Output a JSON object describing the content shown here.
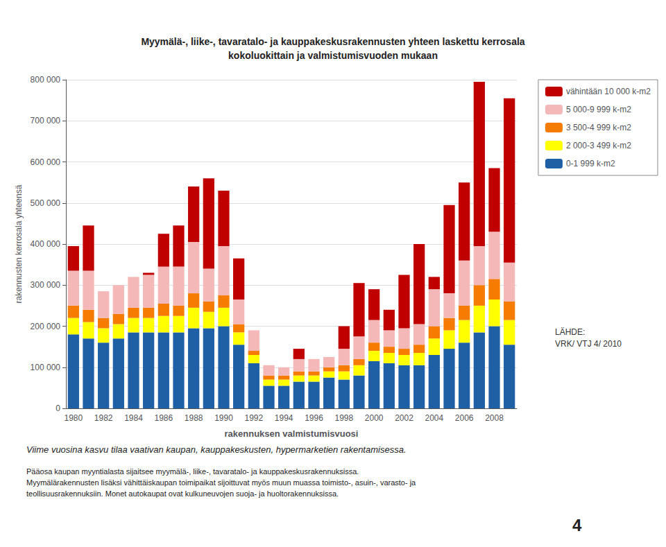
{
  "chart_data": {
    "type": "bar",
    "title": "Myymälä-, liike-, tavaratalo- ja kauppakeskusrakennusten yhteen laskettu kerrosala",
    "subtitle": "kokoluokittain ja valmistumisvuoden mukaan",
    "xlabel": "rakennuksen valmistumisvuosi",
    "ylabel": "rakennusten kerrosala yhteensä",
    "categories": [
      "1980",
      null,
      "1982",
      null,
      "1984",
      null,
      "1986",
      null,
      "1988",
      null,
      "1990",
      null,
      "1992",
      null,
      "1994",
      null,
      "1996",
      null,
      "1998",
      null,
      "2000",
      null,
      "2002",
      null,
      "2004",
      null,
      "2006",
      null,
      "2008",
      null
    ],
    "series": [
      {
        "name": "vähintään 10 000 k-m2",
        "color": "#c00000",
        "values": [
          60000,
          110000,
          0,
          0,
          0,
          5000,
          80000,
          100000,
          135000,
          220000,
          135000,
          100000,
          0,
          0,
          0,
          25000,
          0,
          0,
          55000,
          130000,
          75000,
          50000,
          130000,
          195000,
          30000,
          215000,
          190000,
          400000,
          155000,
          400000
        ]
      },
      {
        "name": "5 000-9 999 k-m2",
        "color": "#f4b8b8",
        "values": [
          85000,
          95000,
          65000,
          70000,
          75000,
          80000,
          90000,
          95000,
          125000,
          80000,
          120000,
          60000,
          50000,
          25000,
          20000,
          30000,
          30000,
          25000,
          40000,
          55000,
          55000,
          40000,
          50000,
          50000,
          90000,
          60000,
          110000,
          95000,
          115000,
          95000
        ]
      },
      {
        "name": "3 500-4 999 k-m2",
        "color": "#f57c00",
        "values": [
          30000,
          30000,
          25000,
          25000,
          25000,
          25000,
          30000,
          25000,
          35000,
          25000,
          30000,
          20000,
          10000,
          10000,
          10000,
          10000,
          10000,
          10000,
          15000,
          15000,
          20000,
          15000,
          15000,
          20000,
          30000,
          30000,
          35000,
          50000,
          50000,
          45000
        ]
      },
      {
        "name": "2 000-3 499 k-m2",
        "color": "#ffff00",
        "values": [
          40000,
          40000,
          35000,
          35000,
          35000,
          35000,
          40000,
          40000,
          50000,
          40000,
          45000,
          30000,
          20000,
          15000,
          15000,
          15000,
          15000,
          15000,
          20000,
          25000,
          25000,
          25000,
          25000,
          30000,
          40000,
          45000,
          55000,
          65000,
          65000,
          60000
        ]
      },
      {
        "name": "0-1 999 k-m2",
        "color": "#1f5fa6",
        "values": [
          180000,
          170000,
          160000,
          170000,
          185000,
          185000,
          185000,
          185000,
          195000,
          195000,
          200000,
          155000,
          110000,
          55000,
          55000,
          65000,
          65000,
          75000,
          70000,
          80000,
          115000,
          110000,
          105000,
          105000,
          130000,
          145000,
          160000,
          185000,
          200000,
          155000
        ]
      }
    ],
    "stacked": true,
    "ylim": [
      0,
      800000
    ],
    "yticks": [
      0,
      {
        "value": 100000,
        "label": "100 000"
      },
      {
        "value": 200000,
        "label": "200 000"
      },
      {
        "value": 300000,
        "label": "300 000"
      },
      {
        "value": 400000,
        "label": "400 000"
      },
      {
        "value": 500000,
        "label": "500 000"
      },
      {
        "value": 600000,
        "label": "600 000"
      },
      {
        "value": 700000,
        "label": "700 000"
      },
      {
        "value": 800000,
        "label": "800 000"
      }
    ],
    "grid": true,
    "legend": "right",
    "annotations": [
      "LÄHDE:\nVRK/ VTJ 4/ 2010",
      "Viime vuosina kasvu tilaa vaativan kaupan, kauppakeskusten, hypermarketien rakentamisessa.",
      "Pääosa kaupan myyntialasta sijaitsee myymälä-, liike-, tavaratalo- ja kauppakeskusrakennuksissa.\nMyymälärakennusten lisäksi vähittäiskaupan toimipaikat sijoittuvat myös muun muassa toimisto-, asuin-, varasto- ja\nteollisuusrakennuksiin. Monet autokaupat ovat kulkuneuvojen suoja- ja huoltorakennuksissa.",
      "4"
    ]
  }
}
